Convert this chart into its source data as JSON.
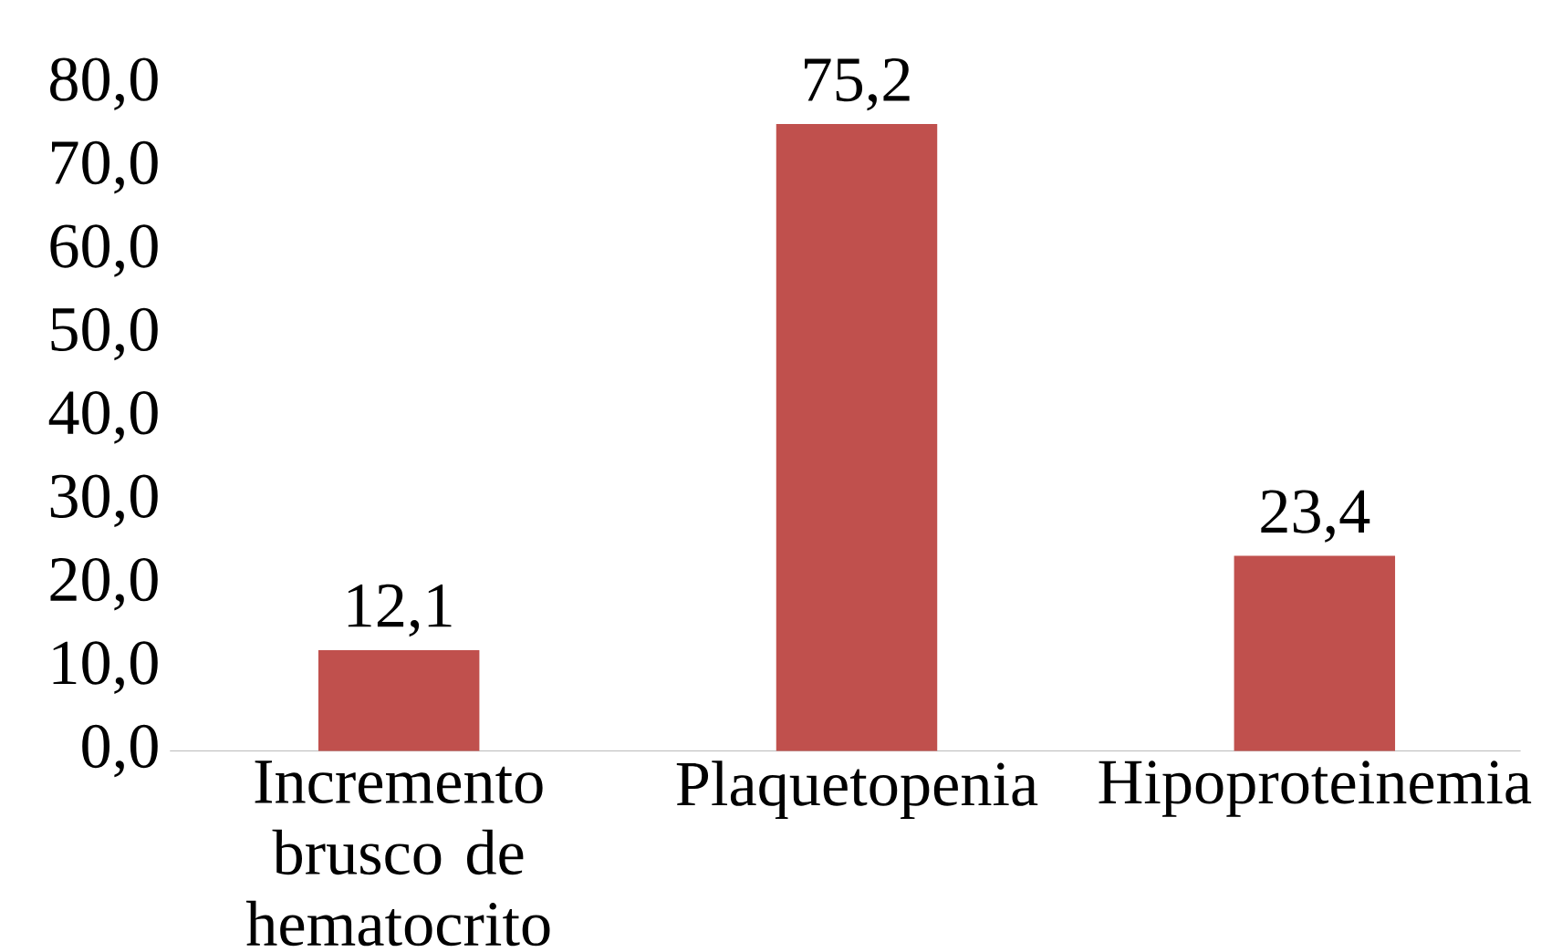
{
  "chart_data": {
    "type": "bar",
    "categories": [
      "Incremento brusco de hematocrito",
      "Plaquetopenia",
      "Hipoproteinemia"
    ],
    "values": [
      12.1,
      75.2,
      23.4
    ],
    "value_labels": [
      "12,1",
      "75,2",
      "23,4"
    ],
    "color": "#c0504d",
    "ylim": [
      0,
      80
    ],
    "yticks": [
      {
        "value": 0,
        "label": "0,0"
      },
      {
        "value": 10,
        "label": "10,0"
      },
      {
        "value": 20,
        "label": "20,0"
      },
      {
        "value": 30,
        "label": "30,0"
      },
      {
        "value": 40,
        "label": "40,0"
      },
      {
        "value": 50,
        "label": "50,0"
      },
      {
        "value": 60,
        "label": "60,0"
      },
      {
        "value": 70,
        "label": "70,0"
      },
      {
        "value": 80,
        "label": "80,0"
      }
    ],
    "grid": false
  }
}
